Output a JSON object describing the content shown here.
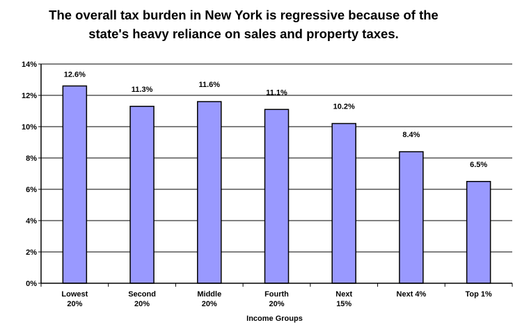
{
  "title_lines": [
    "The overall tax burden in New York is regressive because of the",
    "state's  heavy reliance on sales and property taxes."
  ],
  "chart_data": {
    "type": "bar",
    "title": "The overall tax burden in New York is regressive because of the state's  heavy reliance on sales and property taxes.",
    "categories": [
      [
        "Lowest",
        "20%"
      ],
      [
        "Second",
        "20%"
      ],
      [
        "Middle",
        "20%"
      ],
      [
        "Fourth",
        "20%"
      ],
      [
        "Next",
        "15%"
      ],
      [
        "Next 4%"
      ],
      [
        "Top 1%"
      ]
    ],
    "values": [
      12.6,
      11.3,
      11.6,
      11.1,
      10.2,
      8.4,
      6.5
    ],
    "data_labels": [
      "12.6%",
      "11.3%",
      "11.6%",
      "11.1%",
      "10.2%",
      "8.4%",
      "6.5%"
    ],
    "ylim": [
      0,
      14
    ],
    "yticks": [
      0,
      2,
      4,
      6,
      8,
      10,
      12,
      14
    ],
    "ytick_labels": [
      "0%",
      "2%",
      "4%",
      "6%",
      "8%",
      "10%",
      "12%",
      "14%"
    ],
    "xlabel": "Income Groups",
    "ylabel": "",
    "grid": true,
    "bar_color": "#9999FF",
    "bar_edge_color": "#000000"
  }
}
